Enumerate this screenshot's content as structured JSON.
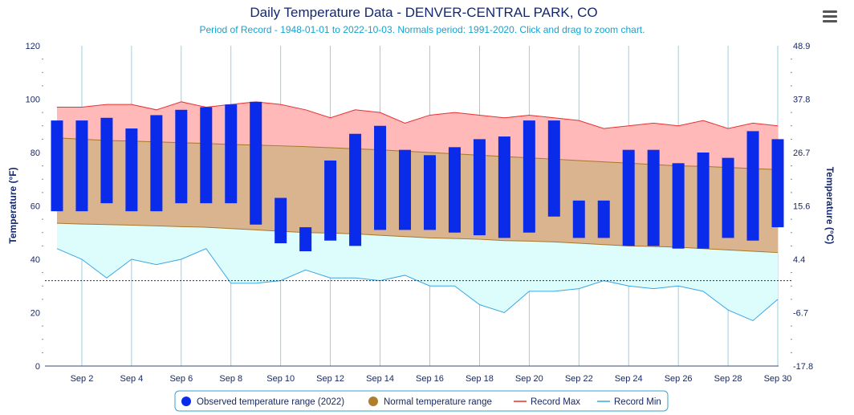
{
  "chart_data": {
    "type": "area",
    "title": "Daily Temperature Data - DENVER-CENTRAL PARK, CO",
    "subtitle": "Period of Record - 1948-01-01 to 2022-10-03. Normals period: 1991-2020. Click and drag to zoom chart.",
    "ylabel_left": "Temperature (°F)",
    "ylabel_right": "Temperature (°C)",
    "ylim": [
      0,
      120
    ],
    "yticks_left": [
      "0",
      "20",
      "40",
      "60",
      "80",
      "100",
      "120"
    ],
    "yticks_right": [
      "-17.8",
      "-6.7",
      "4.4",
      "15.6",
      "26.7",
      "37.8",
      "48.9"
    ],
    "xticks": [
      "Sep 2",
      "Sep 4",
      "Sep 6",
      "Sep 8",
      "Sep 10",
      "Sep 12",
      "Sep 14",
      "Sep 16",
      "Sep 18",
      "Sep 20",
      "Sep 22",
      "Sep 24",
      "Sep 26",
      "Sep 28",
      "Sep 30"
    ],
    "grid": true,
    "legend_position": "bottom",
    "freeze_line_f": 32,
    "days": [
      1,
      2,
      3,
      4,
      5,
      6,
      7,
      8,
      9,
      10,
      11,
      12,
      13,
      14,
      15,
      16,
      17,
      18,
      19,
      20,
      21,
      22,
      23,
      24,
      25,
      26,
      27,
      28,
      29,
      30
    ],
    "record_max": [
      97,
      97,
      98,
      98,
      96,
      99,
      97,
      98,
      99,
      98,
      96,
      93,
      96,
      95,
      91,
      94,
      95,
      94,
      93,
      94,
      93,
      92,
      89,
      90,
      91,
      90,
      92,
      89,
      91,
      90
    ],
    "record_min": [
      44,
      40,
      33,
      40,
      38,
      40,
      44,
      31,
      31,
      32,
      36,
      33,
      33,
      32,
      34,
      30,
      30,
      23,
      20,
      28,
      28,
      29,
      32,
      30,
      29,
      30,
      28,
      21,
      17,
      25
    ],
    "normal_max": [
      85.5,
      85,
      84.5,
      84.3,
      84,
      83.7,
      83.4,
      83,
      82.8,
      82.5,
      82.2,
      81.8,
      81.4,
      81,
      80.5,
      80,
      79.5,
      79,
      78.5,
      78,
      77.5,
      77,
      76.5,
      76,
      75.5,
      75,
      74.8,
      74.4,
      74,
      73.6
    ],
    "normal_min": [
      53.5,
      53.2,
      53,
      52.8,
      52.5,
      52.2,
      52,
      51.5,
      51,
      50.5,
      50,
      49.8,
      49.5,
      49,
      48.5,
      48,
      47.8,
      47.5,
      47,
      46.8,
      46.5,
      46,
      45.5,
      45,
      44.8,
      44.5,
      44,
      43.5,
      43,
      42.5
    ],
    "observed_high": [
      92,
      92,
      93,
      89,
      94,
      96,
      97,
      98,
      99,
      63,
      52,
      77,
      87,
      90,
      81,
      79,
      82,
      85,
      86,
      92,
      92,
      62,
      62,
      81,
      81,
      76,
      80,
      78,
      88,
      85
    ],
    "observed_low": [
      58,
      58,
      61,
      58,
      58,
      61,
      61,
      61,
      53,
      46,
      43,
      47,
      45,
      51,
      51,
      51,
      50,
      49,
      48,
      50,
      56,
      48,
      48,
      45,
      45,
      44,
      44,
      48,
      47,
      52
    ],
    "series": [
      {
        "name": "Observed temperature range (2022)",
        "color": "#0b2bea"
      },
      {
        "name": "Normal temperature range",
        "color": "#b07d2e"
      },
      {
        "name": "Record Max",
        "color": "#e83030"
      },
      {
        "name": "Record Min",
        "color": "#3aa6e6"
      }
    ],
    "colors": {
      "record_max_fill": "#ffb9b9",
      "normal_fill": "#d9b48e",
      "record_min_fill": "#dcfdfb",
      "grid": "#7cc4e0",
      "freeze_line": "#1a2a7a"
    }
  },
  "menu_icon": "hamburger-menu-icon"
}
